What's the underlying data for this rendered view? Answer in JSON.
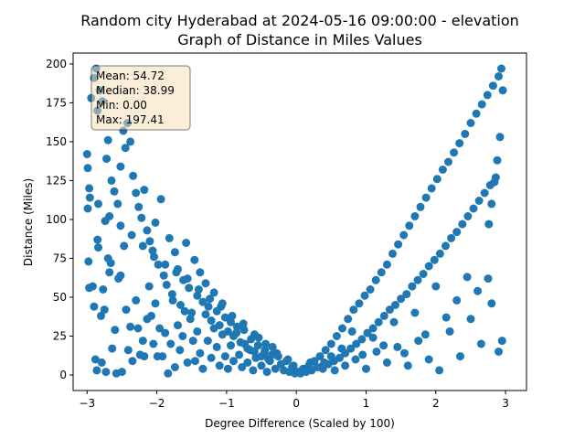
{
  "chart_data": {
    "type": "scatter",
    "title": "Random city Hyderabad at 2024-05-16 09:00:00  - elevation",
    "subtitle": "Graph of Distance in Miles Values",
    "xlabel": "Degree Difference (Scaled by 100)",
    "ylabel": "Distance (Miles)",
    "xlim": [
      -3.2,
      3.3
    ],
    "ylim": [
      -10,
      207
    ],
    "xticks": [
      -3,
      -2,
      -1,
      0,
      1,
      2,
      3
    ],
    "yticks": [
      0,
      25,
      50,
      75,
      100,
      125,
      150,
      175,
      200
    ],
    "grid": false,
    "marker_color": "#1f77b4",
    "stats_box": {
      "mean": "Mean: 54.72",
      "median": "Median: 38.99",
      "min": "Min: 0.00",
      "max": "Max: 197.41",
      "fill": "#f5deb3",
      "placement": "top-left"
    },
    "points": [
      [
        -3.0,
        142
      ],
      [
        -2.99,
        133
      ],
      [
        -2.97,
        120
      ],
      [
        -2.99,
        107
      ],
      [
        -2.98,
        73
      ],
      [
        -2.97,
        56
      ],
      [
        -2.92,
        57
      ],
      [
        -2.9,
        44
      ],
      [
        -2.88,
        10
      ],
      [
        -2.86,
        3
      ],
      [
        -2.85,
        87
      ],
      [
        -2.84,
        82
      ],
      [
        -2.8,
        38
      ],
      [
        -2.79,
        8
      ],
      [
        -2.77,
        55
      ],
      [
        -2.75,
        42
      ],
      [
        -2.74,
        99
      ],
      [
        -2.73,
        2
      ],
      [
        -2.7,
        75
      ],
      [
        -2.68,
        66
      ],
      [
        -2.66,
        72
      ],
      [
        -2.64,
        17
      ],
      [
        -2.6,
        29
      ],
      [
        -2.58,
        1
      ],
      [
        -2.55,
        62
      ],
      [
        -2.52,
        64
      ],
      [
        -2.5,
        2
      ],
      [
        -2.47,
        83
      ],
      [
        -2.44,
        42
      ],
      [
        -2.41,
        16
      ],
      [
        -2.38,
        31
      ],
      [
        -2.35,
        9
      ],
      [
        -2.3,
        48
      ],
      [
        -2.27,
        30
      ],
      [
        -2.24,
        13
      ],
      [
        -2.2,
        22
      ],
      [
        -2.18,
        12
      ],
      [
        -2.14,
        36
      ],
      [
        -2.11,
        57
      ],
      [
        -2.08,
        38
      ],
      [
        -2.05,
        20
      ],
      [
        -2.02,
        46
      ],
      [
        -1.99,
        12
      ],
      [
        -1.96,
        30
      ],
      [
        -1.92,
        12
      ],
      [
        -1.88,
        27
      ],
      [
        -1.84,
        1
      ],
      [
        -1.8,
        20
      ],
      [
        -1.77,
        48
      ],
      [
        -1.74,
        5
      ],
      [
        -1.7,
        32
      ],
      [
        -1.67,
        16
      ],
      [
        -1.63,
        25
      ],
      [
        -1.6,
        41
      ],
      [
        -1.56,
        8
      ],
      [
        -1.52,
        36
      ],
      [
        -1.48,
        22
      ],
      [
        -1.45,
        9
      ],
      [
        -1.42,
        28
      ],
      [
        -1.38,
        14
      ],
      [
        -1.34,
        4
      ],
      [
        -1.3,
        39
      ],
      [
        -1.27,
        22
      ],
      [
        -1.22,
        11
      ],
      [
        -1.18,
        30
      ],
      [
        -1.14,
        18
      ],
      [
        -1.1,
        6
      ],
      [
        -1.06,
        26
      ],
      [
        -1.02,
        12
      ],
      [
        -0.98,
        4
      ],
      [
        -0.94,
        19
      ],
      [
        -0.9,
        9
      ],
      [
        -0.86,
        27
      ],
      [
        -0.82,
        13
      ],
      [
        -0.78,
        5
      ],
      [
        -0.74,
        20
      ],
      [
        -0.7,
        8
      ],
      [
        -0.66,
        16
      ],
      [
        -0.62,
        3
      ],
      [
        -0.58,
        11
      ],
      [
        -0.54,
        24
      ],
      [
        -0.5,
        6
      ],
      [
        -0.46,
        14
      ],
      [
        -0.42,
        2
      ],
      [
        -0.38,
        9
      ],
      [
        -0.34,
        18
      ],
      [
        -0.3,
        4
      ],
      [
        -0.26,
        12
      ],
      [
        -0.22,
        7
      ],
      [
        -0.18,
        3
      ],
      [
        -0.14,
        9
      ],
      [
        -0.1,
        2
      ],
      [
        -0.06,
        5
      ],
      [
        -0.02,
        1
      ],
      [
        -2.94,
        178
      ],
      [
        -2.9,
        191
      ],
      [
        -2.87,
        197
      ],
      [
        -2.85,
        170
      ],
      [
        -2.82,
        183
      ],
      [
        -2.78,
        176
      ],
      [
        -2.72,
        139
      ],
      [
        -2.7,
        151
      ],
      [
        -2.65,
        125
      ],
      [
        -2.61,
        118
      ],
      [
        -2.56,
        110
      ],
      [
        -2.52,
        134
      ],
      [
        -2.48,
        157
      ],
      [
        -2.45,
        146
      ],
      [
        -2.42,
        162
      ],
      [
        -2.38,
        150
      ],
      [
        -2.34,
        128
      ],
      [
        -2.3,
        117
      ],
      [
        -2.26,
        108
      ],
      [
        -2.22,
        101
      ],
      [
        -2.18,
        119
      ],
      [
        -2.14,
        93
      ],
      [
        -2.1,
        86
      ],
      [
        -2.06,
        80
      ],
      [
        -2.02,
        98
      ],
      [
        -1.98,
        71
      ],
      [
        -1.94,
        113
      ],
      [
        -1.9,
        64
      ],
      [
        -1.86,
        58
      ],
      [
        -1.82,
        88
      ],
      [
        -1.78,
        52
      ],
      [
        -1.74,
        79
      ],
      [
        -1.7,
        68
      ],
      [
        -1.66,
        45
      ],
      [
        -1.62,
        61
      ],
      [
        -1.58,
        85
      ],
      [
        -1.54,
        56
      ],
      [
        -1.5,
        40
      ],
      [
        -1.46,
        74
      ],
      [
        -1.42,
        51
      ],
      [
        -1.38,
        66
      ],
      [
        -1.34,
        47
      ],
      [
        -1.3,
        59
      ],
      [
        -1.26,
        44
      ],
      [
        -1.22,
        35
      ],
      [
        -1.18,
        53
      ],
      [
        -1.14,
        41
      ],
      [
        -1.1,
        32
      ],
      [
        -1.06,
        46
      ],
      [
        -1.02,
        37
      ],
      [
        -0.98,
        28
      ],
      [
        -0.94,
        34
      ],
      [
        -0.9,
        25
      ],
      [
        -0.85,
        31
      ],
      [
        -0.8,
        21
      ],
      [
        -0.75,
        29
      ],
      [
        -0.7,
        17
      ],
      [
        -0.65,
        23
      ],
      [
        -0.6,
        15
      ],
      [
        -0.55,
        19
      ],
      [
        -0.5,
        12
      ],
      [
        -0.45,
        16
      ],
      [
        -0.4,
        10
      ],
      [
        -0.35,
        13
      ],
      [
        0.02,
        2
      ],
      [
        0.06,
        1
      ],
      [
        0.1,
        4
      ],
      [
        0.14,
        2
      ],
      [
        0.18,
        6
      ],
      [
        0.22,
        3
      ],
      [
        0.26,
        9
      ],
      [
        0.3,
        5
      ],
      [
        0.34,
        12
      ],
      [
        0.38,
        4
      ],
      [
        0.42,
        16
      ],
      [
        0.46,
        7
      ],
      [
        0.5,
        20
      ],
      [
        0.54,
        9
      ],
      [
        0.58,
        25
      ],
      [
        0.62,
        11
      ],
      [
        0.66,
        30
      ],
      [
        0.7,
        14
      ],
      [
        0.74,
        36
      ],
      [
        0.78,
        17
      ],
      [
        0.82,
        42
      ],
      [
        0.86,
        20
      ],
      [
        0.9,
        46
      ],
      [
        0.94,
        23
      ],
      [
        0.98,
        51
      ],
      [
        1.02,
        27
      ],
      [
        1.06,
        55
      ],
      [
        1.1,
        30
      ],
      [
        1.14,
        61
      ],
      [
        1.18,
        34
      ],
      [
        1.22,
        66
      ],
      [
        1.26,
        38
      ],
      [
        1.3,
        71
      ],
      [
        1.34,
        42
      ],
      [
        1.38,
        78
      ],
      [
        1.42,
        45
      ],
      [
        1.46,
        84
      ],
      [
        1.5,
        49
      ],
      [
        1.54,
        90
      ],
      [
        1.58,
        52
      ],
      [
        1.62,
        96
      ],
      [
        1.66,
        57
      ],
      [
        1.7,
        102
      ],
      [
        1.74,
        61
      ],
      [
        1.78,
        108
      ],
      [
        1.82,
        65
      ],
      [
        1.86,
        114
      ],
      [
        1.9,
        70
      ],
      [
        1.94,
        120
      ],
      [
        1.98,
        74
      ],
      [
        2.02,
        126
      ],
      [
        2.06,
        78
      ],
      [
        2.1,
        132
      ],
      [
        2.14,
        83
      ],
      [
        2.18,
        137
      ],
      [
        2.22,
        88
      ],
      [
        2.26,
        143
      ],
      [
        2.3,
        92
      ],
      [
        2.34,
        149
      ],
      [
        2.38,
        97
      ],
      [
        2.42,
        155
      ],
      [
        2.46,
        102
      ],
      [
        2.5,
        162
      ],
      [
        2.54,
        107
      ],
      [
        2.58,
        168
      ],
      [
        2.62,
        112
      ],
      [
        2.66,
        174
      ],
      [
        2.7,
        117
      ],
      [
        2.74,
        180
      ],
      [
        2.78,
        122
      ],
      [
        2.82,
        186
      ],
      [
        2.86,
        127
      ],
      [
        2.9,
        192
      ],
      [
        2.94,
        197
      ],
      [
        2.96,
        183
      ],
      [
        2.92,
        153
      ],
      [
        2.88,
        138
      ],
      [
        2.84,
        124
      ],
      [
        2.8,
        110
      ],
      [
        2.76,
        97
      ],
      [
        0.4,
        8
      ],
      [
        0.55,
        3
      ],
      [
        0.7,
        6
      ],
      [
        0.85,
        10
      ],
      [
        1.0,
        4
      ],
      [
        1.15,
        15
      ],
      [
        1.3,
        8
      ],
      [
        1.45,
        18
      ],
      [
        1.6,
        6
      ],
      [
        1.75,
        22
      ],
      [
        1.9,
        10
      ],
      [
        2.05,
        3
      ],
      [
        2.2,
        28
      ],
      [
        2.35,
        12
      ],
      [
        2.5,
        36
      ],
      [
        2.65,
        20
      ],
      [
        2.8,
        46
      ],
      [
        2.95,
        22
      ],
      [
        2.9,
        15
      ],
      [
        2.75,
        62
      ],
      [
        2.6,
        54
      ],
      [
        2.45,
        63
      ],
      [
        2.3,
        48
      ],
      [
        2.15,
        37
      ],
      [
        2.0,
        57
      ],
      [
        1.85,
        26
      ],
      [
        1.7,
        40
      ],
      [
        1.55,
        14
      ],
      [
        1.4,
        34
      ],
      [
        1.25,
        19
      ],
      [
        1.1,
        24
      ],
      [
        0.95,
        13
      ],
      [
        0.8,
        28
      ],
      [
        0.65,
        17
      ],
      [
        0.5,
        12
      ],
      [
        0.35,
        5
      ],
      [
        0.2,
        8
      ],
      [
        0.08,
        3
      ],
      [
        -0.04,
        6
      ],
      [
        -0.12,
        10
      ],
      [
        -0.28,
        14
      ],
      [
        -0.44,
        20
      ],
      [
        -0.6,
        26
      ],
      [
        -0.76,
        33
      ],
      [
        -0.92,
        38
      ],
      [
        -1.08,
        44
      ],
      [
        -1.24,
        49
      ],
      [
        -1.4,
        55
      ],
      [
        -1.56,
        62
      ],
      [
        -1.72,
        66
      ],
      [
        -1.88,
        71
      ],
      [
        -2.04,
        76
      ],
      [
        -2.2,
        83
      ],
      [
        -2.36,
        90
      ],
      [
        -2.52,
        96
      ],
      [
        -2.68,
        102
      ],
      [
        -2.84,
        110
      ],
      [
        -2.96,
        114
      ]
    ]
  }
}
